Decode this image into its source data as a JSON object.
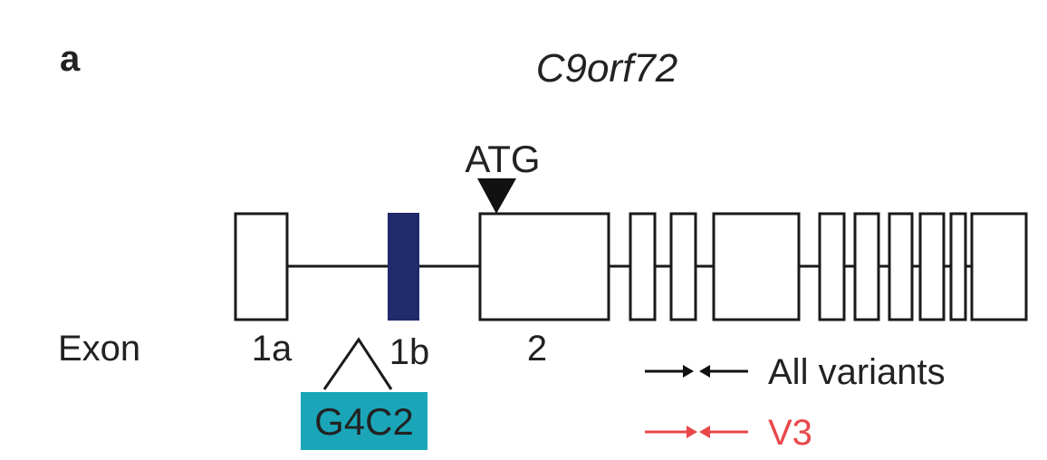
{
  "panel_label": "a",
  "gene_name": "C9orf72",
  "start_codon_label": "ATG",
  "row_label": "Exon",
  "exon_labels": {
    "e1a": "1a",
    "e1b": "1b",
    "e2": "2"
  },
  "repeat_label": "G4C2",
  "legend": [
    {
      "label": "All variants",
      "color": "#111111"
    },
    {
      "label": "V3",
      "color": "#e8474a"
    }
  ],
  "colors": {
    "exon_outline": "#1a1a1a",
    "exon_1b_fill": "#1f2b6b",
    "repeat_highlight": "#1aa6b8",
    "intron_line": "#1a1a1a",
    "legend_v3": "#e8474a"
  }
}
